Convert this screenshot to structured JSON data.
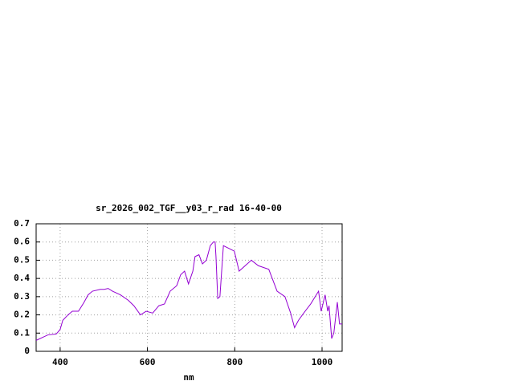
{
  "chart_data": {
    "type": "line",
    "title": "sr_2026_002_TGF__y03_r_rad 16-40-00",
    "x_label": "nm",
    "x": [
      345,
      363,
      372,
      391,
      400,
      406,
      418,
      428,
      442,
      455,
      464,
      474,
      492,
      501,
      510,
      520,
      538,
      556,
      569,
      584,
      597,
      612,
      626,
      639,
      652,
      667,
      676,
      685,
      694,
      704,
      709,
      718,
      726,
      735,
      744,
      751,
      755,
      757,
      761,
      766,
      774,
      799,
      810,
      838,
      854,
      878,
      897,
      915,
      928,
      937,
      946,
      958,
      974,
      992,
      998,
      1007,
      1013,
      1016,
      1022,
      1027,
      1035,
      1040,
      1046
    ],
    "series": [
      {
        "color": "#9400d3",
        "values": [
          0.06,
          0.08,
          0.09,
          0.095,
          0.12,
          0.17,
          0.2,
          0.22,
          0.22,
          0.27,
          0.31,
          0.33,
          0.34,
          0.34,
          0.345,
          0.33,
          0.31,
          0.28,
          0.25,
          0.2,
          0.22,
          0.21,
          0.25,
          0.26,
          0.33,
          0.36,
          0.42,
          0.44,
          0.37,
          0.44,
          0.52,
          0.53,
          0.48,
          0.5,
          0.58,
          0.6,
          0.6,
          0.52,
          0.29,
          0.3,
          0.58,
          0.55,
          0.44,
          0.5,
          0.47,
          0.45,
          0.33,
          0.3,
          0.21,
          0.13,
          0.17,
          0.21,
          0.26,
          0.33,
          0.22,
          0.31,
          0.22,
          0.25,
          0.07,
          0.1,
          0.27,
          0.15,
          0.15
        ]
      }
    ],
    "xlim": [
      345,
      1046
    ],
    "xticks": [
      400,
      600,
      800,
      1000
    ],
    "ylim": [
      0,
      0.7
    ],
    "yticks": [
      0,
      0.1,
      0.2,
      0.3,
      0.4,
      0.5,
      0.6,
      0.7
    ],
    "grid": true
  }
}
